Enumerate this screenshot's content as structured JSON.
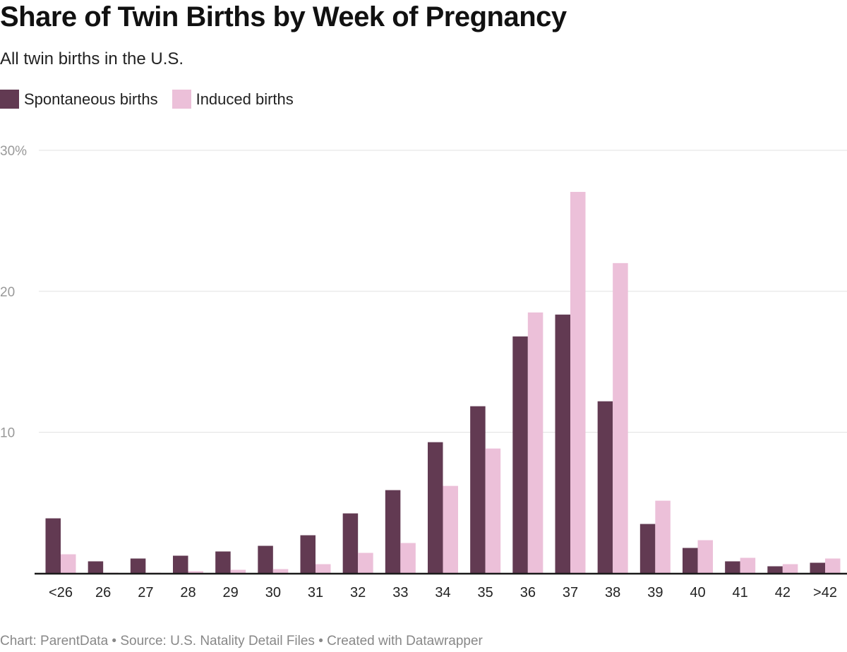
{
  "chart_data": {
    "type": "bar",
    "title": "Share of Twin Births by Week of Pregnancy",
    "subtitle": "All twin births in the U.S.",
    "categories": [
      "<26",
      "26",
      "27",
      "28",
      "29",
      "30",
      "31",
      "32",
      "33",
      "34",
      "35",
      "36",
      "37",
      "38",
      "39",
      "40",
      "41",
      "42",
      ">42"
    ],
    "series": [
      {
        "name": "Spontaneous births",
        "color": "#623a52",
        "values": [
          3.9,
          0.85,
          1.05,
          1.25,
          1.55,
          1.95,
          2.7,
          4.25,
          5.9,
          9.3,
          11.85,
          16.8,
          18.35,
          12.2,
          3.5,
          1.8,
          0.85,
          0.5,
          0.75
        ]
      },
      {
        "name": "Induced births",
        "color": "#ecc0d9",
        "values": [
          1.35,
          0.05,
          0.05,
          0.15,
          0.25,
          0.3,
          0.65,
          1.45,
          2.15,
          6.2,
          8.85,
          18.5,
          27.05,
          22.0,
          5.15,
          2.35,
          1.1,
          0.65,
          1.05
        ]
      }
    ],
    "ylim": [
      0,
      30
    ],
    "yticks": [
      10,
      20,
      30
    ],
    "ytick_labels": [
      "10",
      "20",
      "30%"
    ],
    "grid": true,
    "legend": "top-left"
  },
  "footer": "Chart: ParentData • Source: U.S. Natality Detail Files • Created with Datawrapper"
}
